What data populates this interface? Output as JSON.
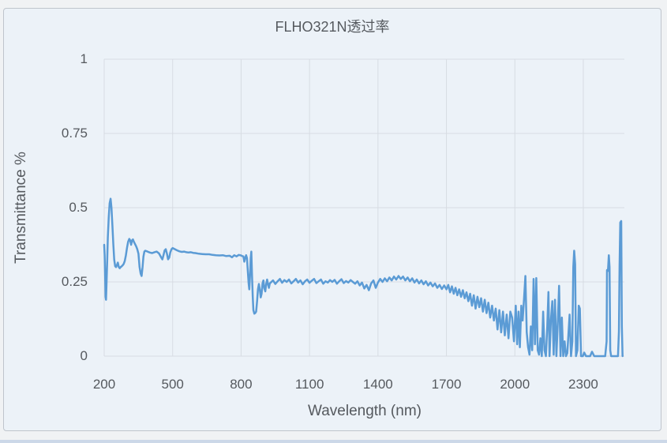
{
  "colors": {
    "line": "#5B9BD5",
    "grid": "#d7dce3",
    "text": "#55595e",
    "card_background": "#ecf2f8",
    "card_border": "#bfc5cc",
    "page_background": "#f0f2f4",
    "bottom_strip": "#ccd8e8"
  },
  "chart_data": {
    "type": "line",
    "title": "FLHO321N透过率",
    "xlabel": "Wavelength (nm)",
    "ylabel": "Transmittance %",
    "xlim": [
      200,
      2480
    ],
    "ylim": [
      0,
      1
    ],
    "x_ticks": [
      200,
      500,
      800,
      1100,
      1400,
      1700,
      2000,
      2300
    ],
    "y_ticks": [
      0,
      0.25,
      0.5,
      0.75,
      1
    ],
    "y_tick_labels": [
      "0",
      "0.25",
      "0.5",
      "0.75",
      "1"
    ],
    "grid": true,
    "legend_position": "none",
    "series": [
      {
        "name": "FLHO321N",
        "x": [
          200,
          202,
          204,
          206,
          208,
          210,
          213,
          216,
          220,
          224,
          228,
          232,
          236,
          240,
          244,
          248,
          252,
          256,
          260,
          264,
          268,
          272,
          276,
          280,
          285,
          290,
          295,
          300,
          305,
          310,
          314,
          318,
          322,
          326,
          330,
          335,
          340,
          345,
          350,
          355,
          360,
          364,
          368,
          372,
          376,
          380,
          390,
          400,
          410,
          420,
          430,
          440,
          450,
          455,
          460,
          465,
          470,
          475,
          480,
          485,
          490,
          495,
          500,
          510,
          520,
          530,
          540,
          550,
          560,
          570,
          580,
          590,
          600,
          615,
          630,
          645,
          660,
          675,
          690,
          705,
          720,
          735,
          750,
          760,
          770,
          780,
          790,
          800,
          805,
          810,
          814,
          818,
          822,
          826,
          830,
          833,
          836,
          839,
          842,
          845,
          848,
          851,
          854,
          858,
          862,
          866,
          870,
          874,
          878,
          882,
          886,
          890,
          894,
          898,
          902,
          906,
          910,
          914,
          918,
          922,
          926,
          930,
          940,
          950,
          960,
          970,
          980,
          990,
          1000,
          1010,
          1020,
          1030,
          1040,
          1050,
          1060,
          1070,
          1080,
          1090,
          1100,
          1110,
          1120,
          1130,
          1140,
          1150,
          1160,
          1170,
          1180,
          1190,
          1200,
          1210,
          1220,
          1230,
          1240,
          1250,
          1260,
          1270,
          1280,
          1290,
          1300,
          1310,
          1320,
          1330,
          1340,
          1350,
          1360,
          1370,
          1380,
          1390,
          1400,
          1410,
          1420,
          1430,
          1440,
          1450,
          1460,
          1470,
          1480,
          1490,
          1500,
          1510,
          1520,
          1530,
          1540,
          1550,
          1560,
          1570,
          1580,
          1590,
          1600,
          1610,
          1620,
          1630,
          1640,
          1650,
          1660,
          1670,
          1680,
          1690,
          1700,
          1708,
          1716,
          1724,
          1732,
          1740,
          1748,
          1756,
          1764,
          1772,
          1780,
          1788,
          1796,
          1804,
          1812,
          1820,
          1828,
          1836,
          1844,
          1852,
          1860,
          1868,
          1876,
          1884,
          1892,
          1900,
          1908,
          1916,
          1924,
          1932,
          1940,
          1948,
          1956,
          1964,
          1972,
          1980,
          1988,
          1996,
          2004,
          2010,
          2016,
          2022,
          2028,
          2034,
          2040,
          2046,
          2052,
          2058,
          2064,
          2070,
          2076,
          2082,
          2088,
          2094,
          2100,
          2106,
          2112,
          2118,
          2124,
          2130,
          2136,
          2142,
          2147,
          2152,
          2158,
          2164,
          2170,
          2176,
          2182,
          2188,
          2194,
          2200,
          2206,
          2212,
          2218,
          2224,
          2230,
          2240,
          2246,
          2252,
          2256,
          2260,
          2264,
          2268,
          2274,
          2280,
          2285,
          2290,
          2298,
          2304,
          2312,
          2330,
          2338,
          2348,
          2370,
          2396,
          2402,
          2404,
          2408,
          2412,
          2415,
          2418,
          2422,
          2440,
          2452,
          2456,
          2459,
          2462,
          2466,
          2469,
          2472
        ],
        "y": [
          0.375,
          0.34,
          0.27,
          0.2,
          0.19,
          0.24,
          0.32,
          0.4,
          0.47,
          0.515,
          0.53,
          0.5,
          0.44,
          0.375,
          0.325,
          0.303,
          0.3,
          0.307,
          0.315,
          0.3,
          0.296,
          0.3,
          0.302,
          0.305,
          0.31,
          0.32,
          0.34,
          0.365,
          0.385,
          0.395,
          0.39,
          0.375,
          0.39,
          0.393,
          0.385,
          0.378,
          0.37,
          0.36,
          0.345,
          0.3,
          0.278,
          0.27,
          0.3,
          0.335,
          0.352,
          0.355,
          0.352,
          0.349,
          0.347,
          0.35,
          0.352,
          0.346,
          0.332,
          0.326,
          0.34,
          0.356,
          0.36,
          0.345,
          0.326,
          0.332,
          0.35,
          0.36,
          0.364,
          0.36,
          0.356,
          0.353,
          0.351,
          0.352,
          0.35,
          0.349,
          0.35,
          0.348,
          0.347,
          0.345,
          0.344,
          0.343,
          0.343,
          0.341,
          0.34,
          0.339,
          0.34,
          0.337,
          0.338,
          0.333,
          0.34,
          0.336,
          0.341,
          0.339,
          0.337,
          0.336,
          0.318,
          0.33,
          0.34,
          0.33,
          0.28,
          0.245,
          0.225,
          0.27,
          0.33,
          0.352,
          0.27,
          0.2,
          0.155,
          0.143,
          0.145,
          0.15,
          0.185,
          0.225,
          0.243,
          0.225,
          0.198,
          0.21,
          0.245,
          0.255,
          0.228,
          0.218,
          0.243,
          0.258,
          0.242,
          0.23,
          0.245,
          0.248,
          0.255,
          0.243,
          0.252,
          0.26,
          0.247,
          0.256,
          0.25,
          0.258,
          0.245,
          0.252,
          0.26,
          0.248,
          0.255,
          0.242,
          0.252,
          0.258,
          0.247,
          0.254,
          0.26,
          0.246,
          0.252,
          0.258,
          0.244,
          0.252,
          0.248,
          0.256,
          0.25,
          0.257,
          0.244,
          0.252,
          0.259,
          0.246,
          0.253,
          0.248,
          0.256,
          0.25,
          0.244,
          0.252,
          0.238,
          0.248,
          0.228,
          0.24,
          0.222,
          0.245,
          0.255,
          0.23,
          0.248,
          0.26,
          0.25,
          0.262,
          0.252,
          0.265,
          0.255,
          0.268,
          0.258,
          0.27,
          0.26,
          0.268,
          0.255,
          0.265,
          0.252,
          0.262,
          0.248,
          0.258,
          0.245,
          0.255,
          0.242,
          0.252,
          0.238,
          0.248,
          0.235,
          0.245,
          0.23,
          0.24,
          0.226,
          0.238,
          0.225,
          0.24,
          0.215,
          0.235,
          0.21,
          0.23,
          0.205,
          0.225,
          0.2,
          0.222,
          0.195,
          0.215,
          0.185,
          0.21,
          0.17,
          0.205,
          0.16,
          0.2,
          0.165,
          0.195,
          0.15,
          0.19,
          0.145,
          0.18,
          0.13,
          0.17,
          0.12,
          0.16,
          0.09,
          0.155,
          0.08,
          0.15,
          0.07,
          0.14,
          0.06,
          0.15,
          0.13,
          0.05,
          0.17,
          0.04,
          0.15,
          0.03,
          0.17,
          0.12,
          0.19,
          0.27,
          0.08,
          0.03,
          0.005,
          0.1,
          0.02,
          0.26,
          0.04,
          0.263,
          0.02,
          0.005,
          0.06,
          0,
          0.15,
          0.02,
          0,
          0.1,
          0.216,
          0,
          0.12,
          0.185,
          0.005,
          0.19,
          0,
          0.11,
          0.237,
          0,
          0.13,
          0,
          0.05,
          0,
          0.01,
          0.14,
          0,
          0.05,
          0.3,
          0.355,
          0.31,
          0,
          0.02,
          0.17,
          0.16,
          0,
          0,
          0.012,
          0,
          0,
          0.015,
          0,
          0,
          0,
          0.05,
          0.29,
          0.287,
          0.34,
          0.3,
          0.02,
          0,
          0,
          0,
          0.084,
          0.3,
          0.45,
          0.455,
          0.1,
          0
        ]
      }
    ]
  }
}
